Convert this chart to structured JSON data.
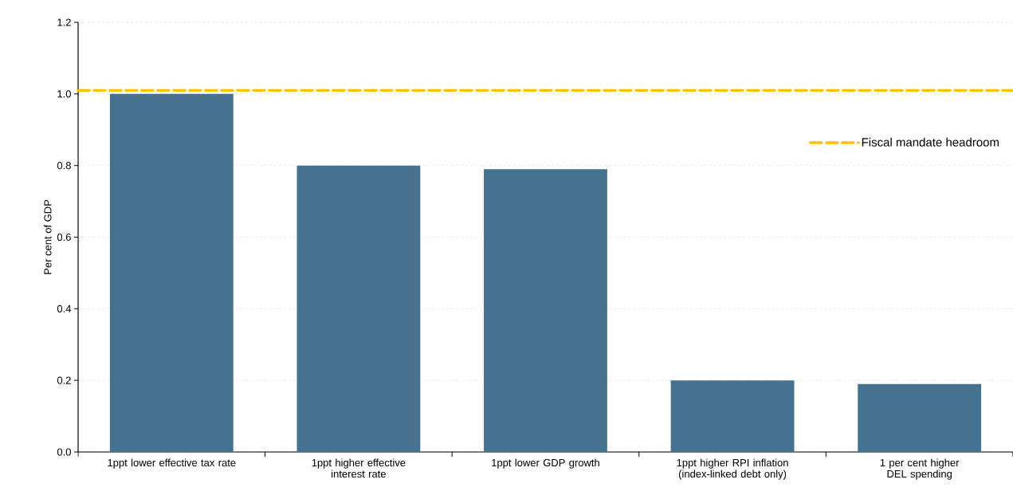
{
  "chart_data": {
    "type": "bar",
    "ylabel": "Per cent of GDP",
    "categories": [
      "1ppt lower effective tax rate",
      "1ppt higher effective interest rate",
      "1ppt lower GDP growth",
      "1ppt higher RPI inflation (index-linked debt only)",
      "1 per cent higher DEL spending"
    ],
    "values": [
      1.0,
      0.8,
      0.79,
      0.2,
      0.19
    ],
    "color": "#46718f",
    "ylim": [
      0,
      1.2
    ],
    "yticks": [
      {
        "value": 0,
        "label": "0.0"
      },
      0.2,
      0.4,
      0.6,
      0.8,
      {
        "value": 1,
        "label": "1.0"
      },
      1.2
    ],
    "ref_lines": [
      {
        "axis": "y",
        "value": 1.01,
        "label": "Fiscal mandate headroom",
        "color": "#ffc000",
        "line_style": "dashed"
      }
    ],
    "grid": "y",
    "legend": "right"
  }
}
